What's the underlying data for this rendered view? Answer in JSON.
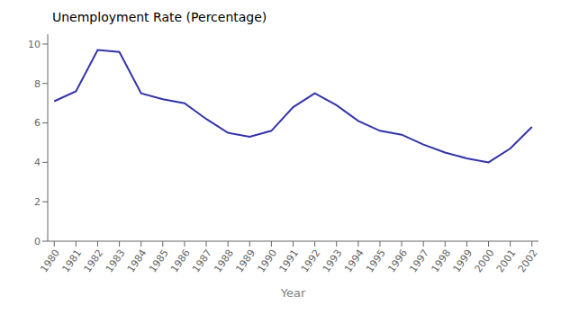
{
  "chart_data": {
    "type": "line",
    "title": "Unemployment Rate (Percentage)",
    "xlabel": "Year",
    "x": [
      1980,
      1981,
      1982,
      1983,
      1984,
      1985,
      1986,
      1987,
      1988,
      1989,
      1990,
      1991,
      1992,
      1993,
      1994,
      1995,
      1996,
      1997,
      1998,
      1999,
      2000,
      2001,
      2002
    ],
    "values": [
      7.1,
      7.6,
      9.7,
      9.6,
      7.5,
      7.2,
      7.0,
      6.2,
      5.5,
      5.3,
      5.6,
      6.8,
      7.5,
      6.9,
      6.1,
      5.6,
      5.4,
      4.9,
      4.5,
      4.2,
      4.0,
      4.7,
      5.8
    ],
    "color": "#3333aa",
    "xlim": [
      1979.7,
      2002.3
    ],
    "xticks": [
      1980,
      1981,
      1982,
      1983,
      1984,
      1985,
      1986,
      1987,
      1988,
      1989,
      1990,
      1991,
      1992,
      1993,
      1994,
      1995,
      1996,
      1997,
      1998,
      1999,
      2000,
      2001,
      2002
    ],
    "ylim": [
      0,
      10.5
    ],
    "yticks": [
      0,
      2,
      4,
      6,
      8,
      10
    ],
    "grid": false
  }
}
